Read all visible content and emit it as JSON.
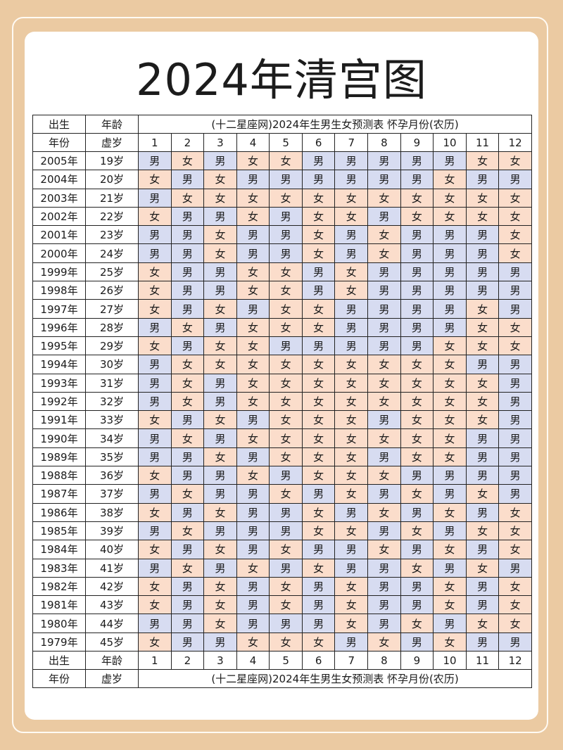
{
  "title": "2024年清宫图",
  "header": {
    "row1": [
      "出生",
      "年龄"
    ],
    "row2": [
      "年份",
      "虚岁"
    ],
    "caption": "(十二星座网)2024年生男生女预测表 怀孕月份(农历)",
    "months": [
      "1",
      "2",
      "3",
      "4",
      "5",
      "6",
      "7",
      "8",
      "9",
      "10",
      "11",
      "12"
    ]
  },
  "colors": {
    "boy": "#d7dcf1",
    "girl": "#fbddcb",
    "background": "#ebcaa2"
  },
  "rows": [
    {
      "year": "2005年",
      "age": "19岁",
      "cells": "男女男女女男男男男男女女"
    },
    {
      "year": "2004年",
      "age": "20岁",
      "cells": "女男女男男男男男男女男男"
    },
    {
      "year": "2003年",
      "age": "21岁",
      "cells": "男女女女女女女女女女女女"
    },
    {
      "year": "2002年",
      "age": "22岁",
      "cells": "女男男女男女女男女女女女"
    },
    {
      "year": "2001年",
      "age": "23岁",
      "cells": "男男女男男女男女男男男女"
    },
    {
      "year": "2000年",
      "age": "24岁",
      "cells": "男男女男男女男女男男男女"
    },
    {
      "year": "1999年",
      "age": "25岁",
      "cells": "女男男女女男女男男男男男"
    },
    {
      "year": "1998年",
      "age": "26岁",
      "cells": "女男男女女男女男男男男男"
    },
    {
      "year": "1997年",
      "age": "27岁",
      "cells": "女男女男女女男男男男女男"
    },
    {
      "year": "1996年",
      "age": "28岁",
      "cells": "男女男女女女男男男男女女"
    },
    {
      "year": "1995年",
      "age": "29岁",
      "cells": "女男女女男男男男男女女女"
    },
    {
      "year": "1994年",
      "age": "30岁",
      "cells": "男女女女女女女女女女男男"
    },
    {
      "year": "1993年",
      "age": "31岁",
      "cells": "男女男女女女女女女女女男"
    },
    {
      "year": "1992年",
      "age": "32岁",
      "cells": "男女男女女女女女女女女男"
    },
    {
      "year": "1991年",
      "age": "33岁",
      "cells": "女男女男女女女男女女女男"
    },
    {
      "year": "1990年",
      "age": "34岁",
      "cells": "男女男女女女女女女女男男"
    },
    {
      "year": "1989年",
      "age": "35岁",
      "cells": "男男女男女女女男女女男男"
    },
    {
      "year": "1988年",
      "age": "36岁",
      "cells": "女男男女男女女女男男男男"
    },
    {
      "year": "1987年",
      "age": "37岁",
      "cells": "男女男男女男女男女男女男"
    },
    {
      "year": "1986年",
      "age": "38岁",
      "cells": "女男女男男女男女男女男女"
    },
    {
      "year": "1985年",
      "age": "39岁",
      "cells": "男女男男男女女男女男女女"
    },
    {
      "year": "1984年",
      "age": "40岁",
      "cells": "女男女男女男男女男女男女"
    },
    {
      "year": "1983年",
      "age": "41岁",
      "cells": "男女男女男女男男女男女男"
    },
    {
      "year": "1982年",
      "age": "42岁",
      "cells": "女男女男女男女男男女男女"
    },
    {
      "year": "1981年",
      "age": "43岁",
      "cells": "女男女男女男女男男女男女"
    },
    {
      "year": "1980年",
      "age": "44岁",
      "cells": "男男女男男男女男女男女女"
    },
    {
      "year": "1979年",
      "age": "45岁",
      "cells": "女男男女女女男女男女男男"
    }
  ]
}
